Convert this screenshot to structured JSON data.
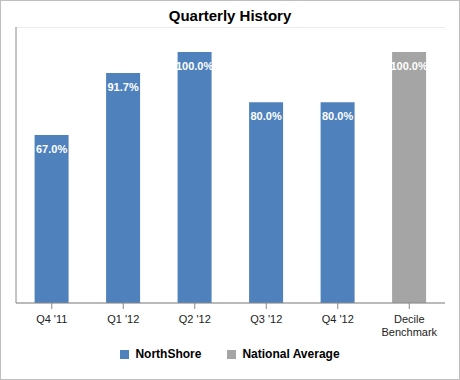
{
  "chart_data": {
    "type": "bar",
    "title": "Quarterly History",
    "categories": [
      "Q4 '11",
      "Q1 '12",
      "Q2 '12",
      "Q3 '12",
      "Q4 '12",
      "Decile Benchmark"
    ],
    "series": [
      {
        "name": "NorthShore",
        "color": "#4f81bd",
        "values": [
          67,
          91.7,
          100,
          80,
          80,
          null
        ],
        "value_labels": [
          "67.0%",
          "91.7%",
          "100.0%",
          "80.0%",
          "80.0%",
          null
        ]
      },
      {
        "name": "National Average",
        "color": "#a5a5a5",
        "values": [
          null,
          null,
          null,
          null,
          null,
          100
        ],
        "value_labels": [
          null,
          null,
          null,
          null,
          null,
          "100.0%"
        ]
      }
    ],
    "ylim": [
      0,
      110
    ],
    "yticks": [
      0,
      10,
      20,
      30,
      40,
      50,
      60,
      70,
      80,
      90,
      100,
      110
    ],
    "grid": true,
    "tick_labels": "x",
    "data_labels": true
  }
}
